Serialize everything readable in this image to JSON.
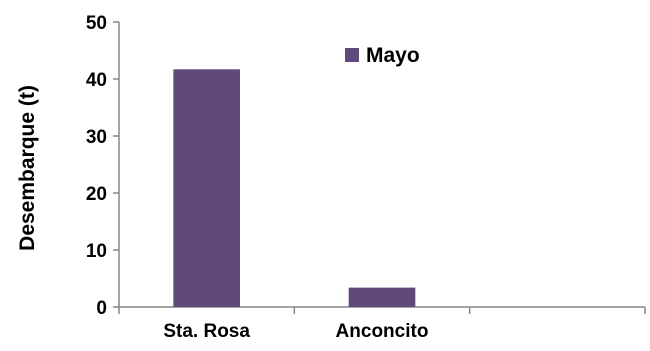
{
  "chart_data": {
    "type": "bar",
    "categories": [
      "Sta. Rosa",
      "Anconcito",
      ""
    ],
    "series": [
      {
        "name": "Mayo",
        "values": [
          41.7,
          3.4,
          null
        ],
        "color": "#604a7b"
      }
    ],
    "title": "",
    "xlabel": "",
    "ylabel": "Desembarque (t)",
    "ylim": [
      0,
      50
    ],
    "yticks": [
      0,
      10,
      20,
      30,
      40,
      50
    ],
    "grid": false,
    "legend_position": "top-right"
  }
}
